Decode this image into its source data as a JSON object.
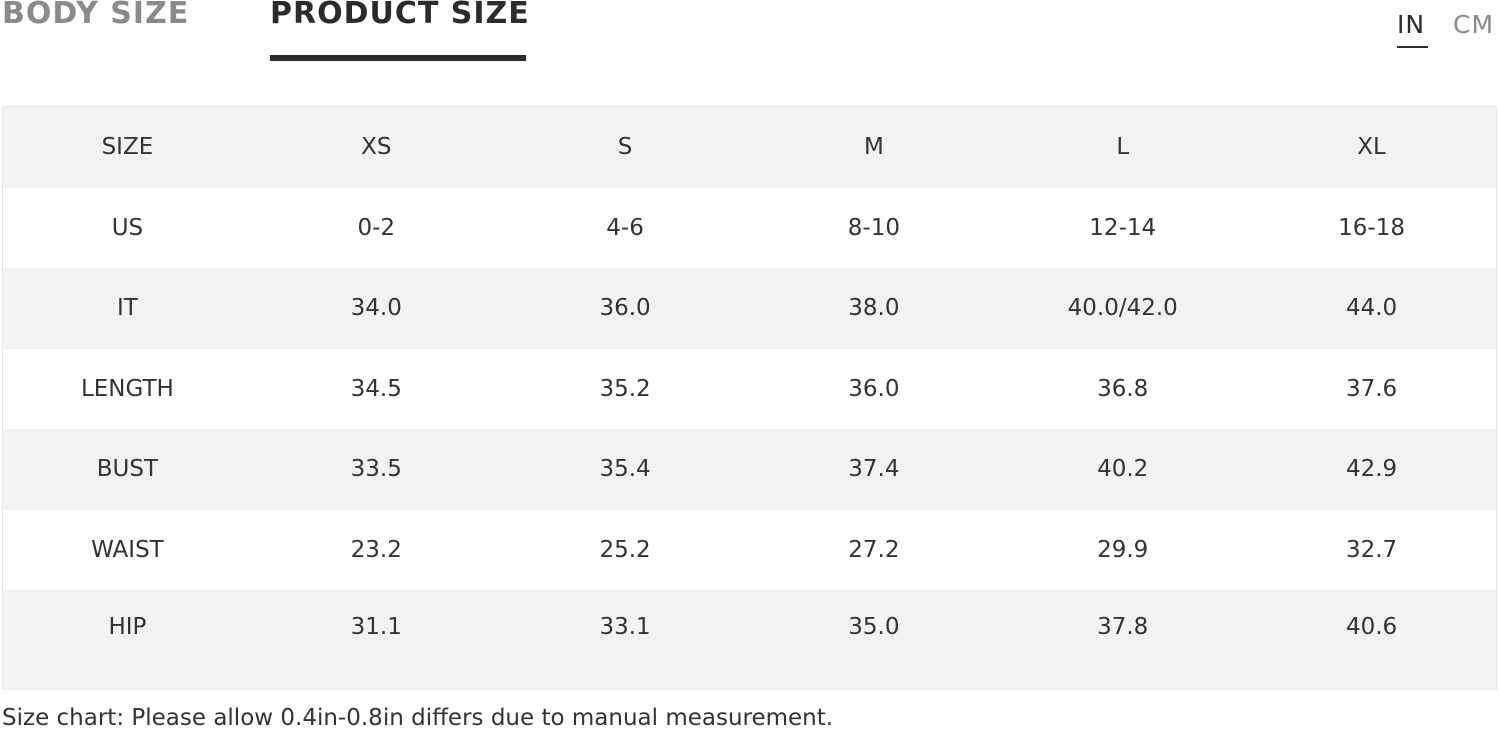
{
  "tabs": [
    "BODY SIZE",
    "PRODUCT SIZE"
  ],
  "units": [
    "IN",
    "CM"
  ],
  "table": {
    "header": [
      "SIZE",
      "XS",
      "S",
      "M",
      "L",
      "XL"
    ],
    "rows": [
      [
        "US",
        "0-2",
        "4-6",
        "8-10",
        "12-14",
        "16-18"
      ],
      [
        "IT",
        "34.0",
        "36.0",
        "38.0",
        "40.0/42.0",
        "44.0"
      ],
      [
        "LENGTH",
        "34.5",
        "35.2",
        "36.0",
        "36.8",
        "37.6"
      ],
      [
        "BUST",
        "33.5",
        "35.4",
        "37.4",
        "40.2",
        "42.9"
      ],
      [
        "WAIST",
        "23.2",
        "25.2",
        "27.2",
        "29.9",
        "32.7"
      ],
      [
        "HIP",
        "31.1",
        "33.1",
        "35.0",
        "37.8",
        "40.6"
      ]
    ]
  },
  "note": "Size chart: Please allow 0.4in-0.8in differs due to manual measurement."
}
